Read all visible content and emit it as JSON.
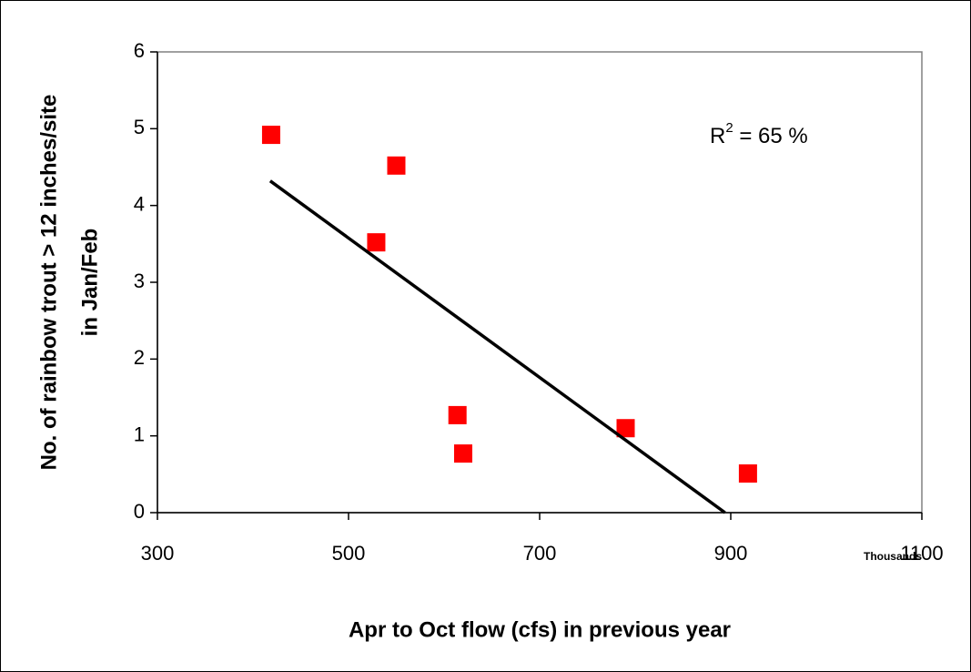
{
  "chart_data": {
    "type": "scatter",
    "x_label": "Apr to Oct flow (cfs) in previous year",
    "x_units_label": "Thousands",
    "y_label": [
      "No. of rainbow trout > 12 inches/site",
      "in Jan/Feb"
    ],
    "annotation": {
      "base": "R",
      "sup": "2",
      "rest": " = 65 %"
    },
    "series": [
      {
        "kind": "points",
        "color": "#ff0000",
        "x": [
          419,
          550,
          529,
          614,
          620,
          790,
          918
        ],
        "values": [
          4.92,
          4.52,
          3.52,
          1.27,
          0.77,
          1.1,
          0.51
        ]
      },
      {
        "kind": "trendline",
        "color": "#000000",
        "x": [
          418,
          894
        ],
        "values": [
          4.32,
          0
        ]
      }
    ],
    "xlim": [
      300,
      1100
    ],
    "xticks": [
      300,
      500,
      700,
      900,
      1100
    ],
    "ylim": [
      0,
      6
    ],
    "yticks": [
      0,
      1,
      2,
      3,
      4,
      5,
      6
    ],
    "grid": false
  }
}
